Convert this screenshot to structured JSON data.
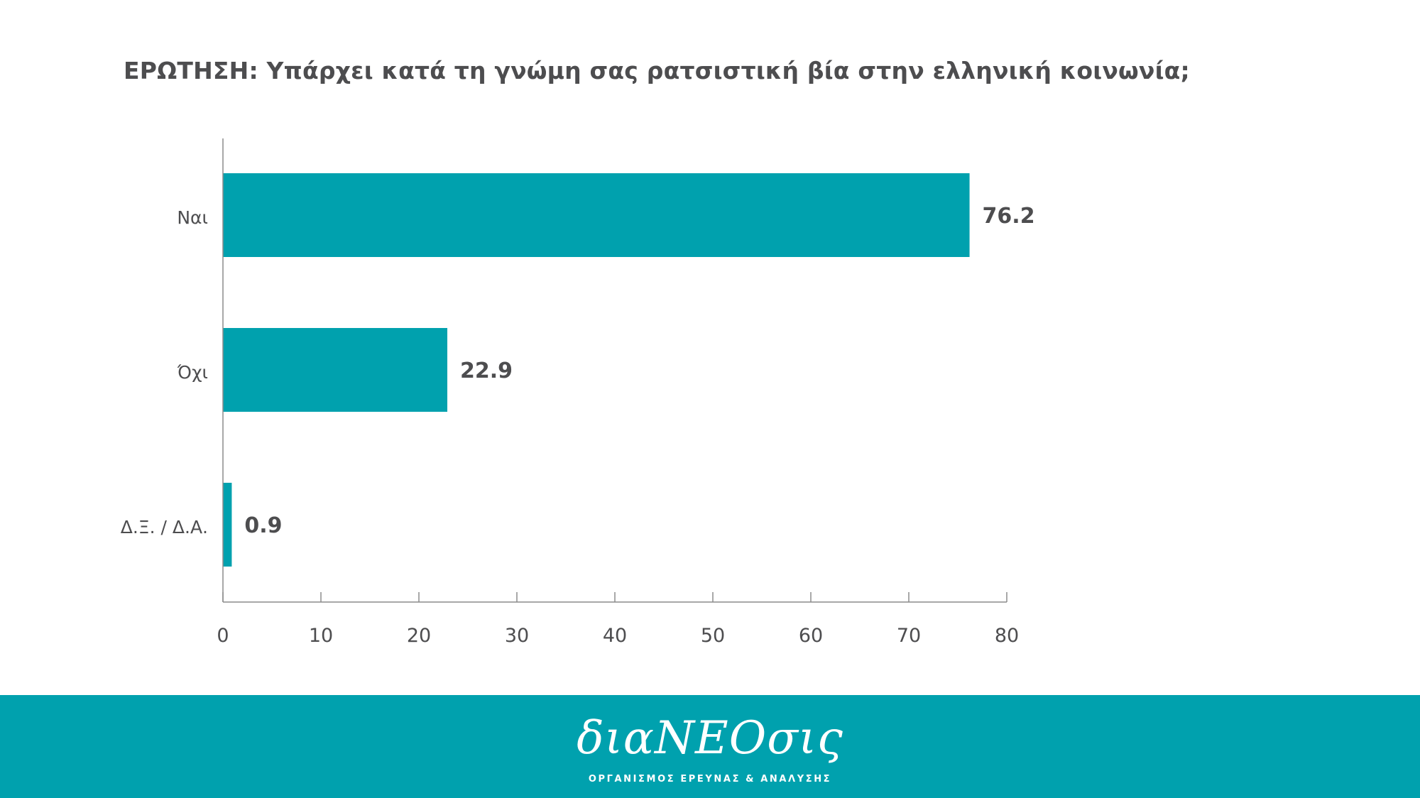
{
  "question": "ΕΡΩΤΗΣΗ: Υπάρχει κατά τη γνώμη σας ρατσιστική βία στην ελληνική κοινωνία;",
  "chart_data": {
    "type": "bar",
    "orientation": "horizontal",
    "title": "ΕΡΩΤΗΣΗ: Υπάρχει κατά τη γνώμη σας ρατσιστική βία στην ελληνική κοινωνία;",
    "categories": [
      "Ναι",
      "Όχι",
      "Δ.Ξ. / Δ.Α."
    ],
    "values": [
      76.2,
      22.9,
      0.9
    ],
    "value_labels": [
      "76.2",
      "22.9",
      "0.9"
    ],
    "xlim": [
      0,
      80
    ],
    "xticks": [
      "0",
      "10",
      "20",
      "30",
      "40",
      "50",
      "60",
      "70",
      "80"
    ],
    "xlabel": "",
    "ylabel": "",
    "grid": false,
    "bar_color": "#00a1ae"
  },
  "colors": {
    "accent": "#00a1ae",
    "text": "#4d4d4f",
    "axis": "#8c8c8c"
  },
  "footer": {
    "logo": "διαΝΕΟσις",
    "tagline": "ΟΡΓΑΝΙΣΜΟΣ ΕΡΕΥΝΑΣ & ΑΝΑΛΥΣΗΣ"
  }
}
